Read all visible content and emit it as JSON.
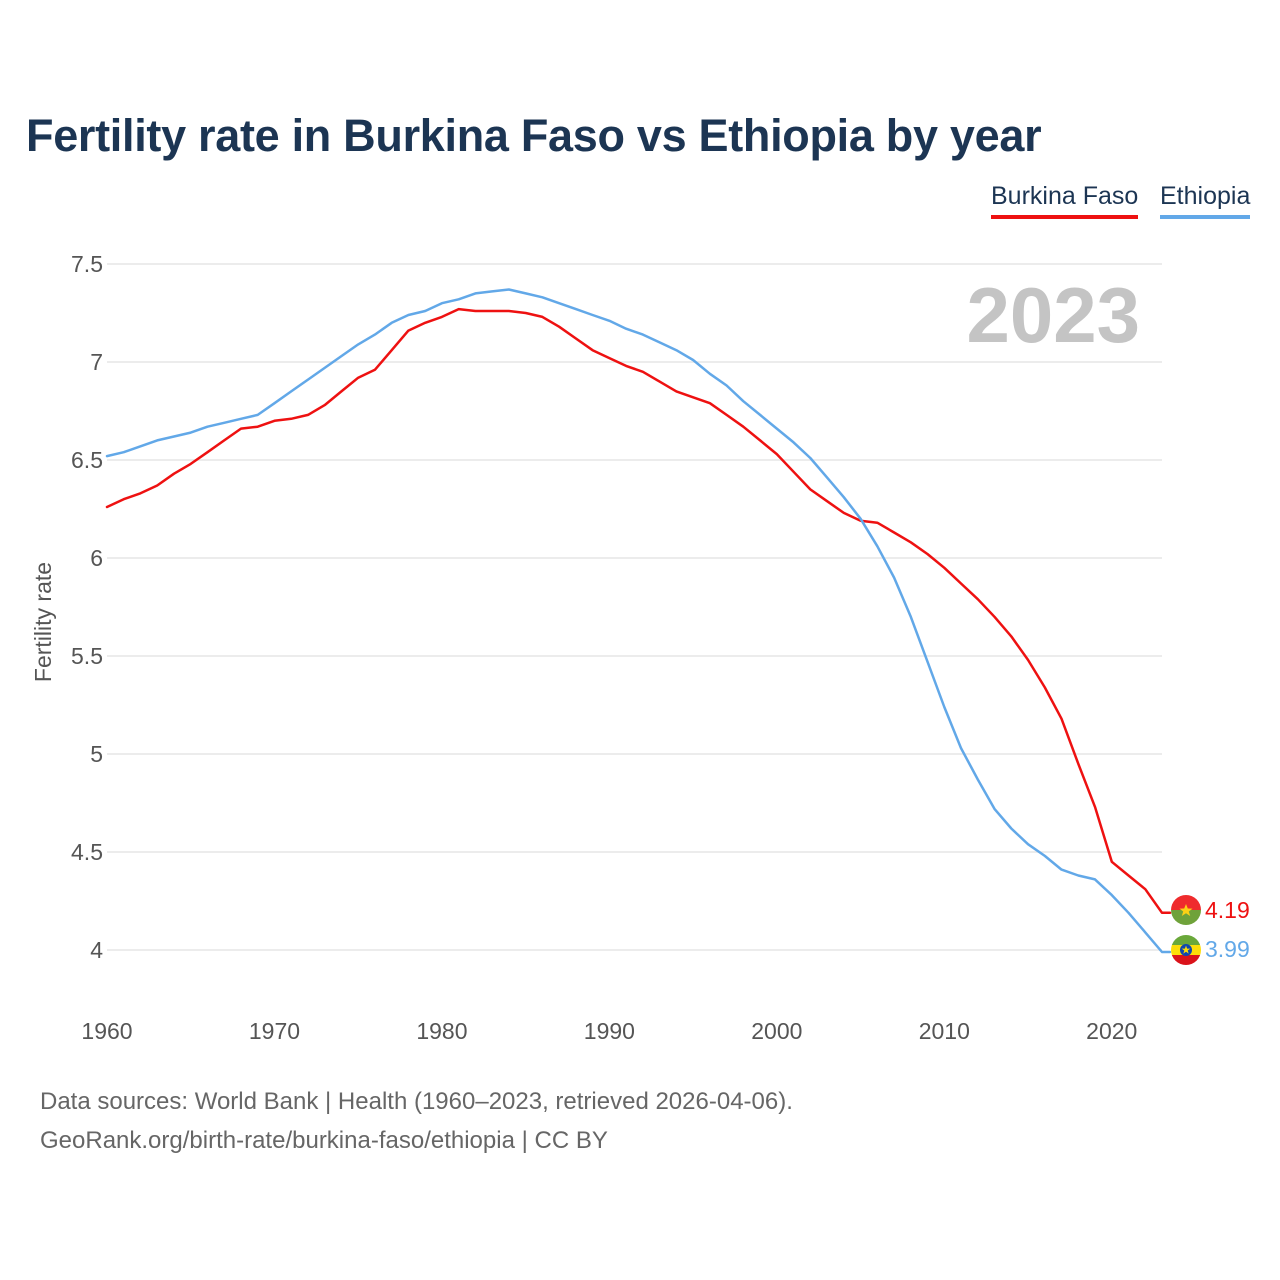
{
  "title": "Fertility rate in Burkina Faso vs Ethiopia by year",
  "legend": {
    "burkina_faso": "Burkina Faso",
    "ethiopia": "Ethiopia"
  },
  "year_watermark": "2023",
  "end_labels": {
    "burkina_faso": "4.19",
    "ethiopia": "3.99"
  },
  "source": {
    "line1": "Data sources: World Bank | Health (1960–2023, retrieved 2026-04-06).",
    "line2": "GeoRank.org/birth-rate/burkina-faso/ethiopia | CC BY"
  },
  "colors": {
    "burkina_faso": "#ee1111",
    "ethiopia": "#62a8e8",
    "title": "#1c3553",
    "grid": "#e6e6e6",
    "axis_text": "#555555",
    "watermark": "#c4c4c4"
  },
  "chart_data": {
    "type": "line",
    "title": "Fertility rate in Burkina Faso vs Ethiopia by year",
    "xlabel": "",
    "ylabel": "Fertility rate",
    "xlim": [
      1960,
      2023
    ],
    "ylim": [
      4,
      7.5
    ],
    "xticks": [
      1960,
      1970,
      1980,
      1990,
      2000,
      2010,
      2020
    ],
    "yticks": [
      4,
      4.5,
      5,
      5.5,
      6,
      6.5,
      7,
      7.5
    ],
    "ytick_labels": [
      "4",
      "4.5",
      "5",
      "5.5",
      "6",
      "6.5",
      "7",
      "7.5"
    ],
    "grid": true,
    "legend_position": "top-right",
    "x": [
      1960,
      1961,
      1962,
      1963,
      1964,
      1965,
      1966,
      1967,
      1968,
      1969,
      1970,
      1971,
      1972,
      1973,
      1974,
      1975,
      1976,
      1977,
      1978,
      1979,
      1980,
      1981,
      1982,
      1983,
      1984,
      1985,
      1986,
      1987,
      1988,
      1989,
      1990,
      1991,
      1992,
      1993,
      1994,
      1995,
      1996,
      1997,
      1998,
      1999,
      2000,
      2001,
      2002,
      2003,
      2004,
      2005,
      2006,
      2007,
      2008,
      2009,
      2010,
      2011,
      2012,
      2013,
      2014,
      2015,
      2016,
      2017,
      2018,
      2019,
      2020,
      2021,
      2022,
      2023
    ],
    "series": [
      {
        "name": "Burkina Faso",
        "color": "#ee1111",
        "values": [
          6.26,
          6.3,
          6.33,
          6.37,
          6.43,
          6.48,
          6.54,
          6.6,
          6.66,
          6.67,
          6.7,
          6.71,
          6.73,
          6.78,
          6.85,
          6.92,
          6.96,
          7.06,
          7.16,
          7.2,
          7.23,
          7.27,
          7.26,
          7.26,
          7.26,
          7.25,
          7.23,
          7.18,
          7.12,
          7.06,
          7.02,
          6.98,
          6.95,
          6.9,
          6.85,
          6.82,
          6.79,
          6.73,
          6.67,
          6.6,
          6.53,
          6.44,
          6.35,
          6.29,
          6.23,
          6.19,
          6.18,
          6.13,
          6.08,
          6.02,
          5.95,
          5.87,
          5.79,
          5.7,
          5.6,
          5.48,
          5.34,
          5.18,
          4.95,
          4.73,
          4.45,
          4.38,
          4.31,
          4.19
        ]
      },
      {
        "name": "Ethiopia",
        "color": "#62a8e8",
        "values": [
          6.52,
          6.54,
          6.57,
          6.6,
          6.62,
          6.64,
          6.67,
          6.69,
          6.71,
          6.73,
          6.79,
          6.85,
          6.91,
          6.97,
          7.03,
          7.09,
          7.14,
          7.2,
          7.24,
          7.26,
          7.3,
          7.32,
          7.35,
          7.36,
          7.37,
          7.35,
          7.33,
          7.3,
          7.27,
          7.24,
          7.21,
          7.17,
          7.14,
          7.1,
          7.06,
          7.01,
          6.94,
          6.88,
          6.8,
          6.73,
          6.66,
          6.59,
          6.51,
          6.41,
          6.31,
          6.2,
          6.06,
          5.9,
          5.7,
          5.47,
          5.24,
          5.03,
          4.87,
          4.72,
          4.62,
          4.54,
          4.48,
          4.41,
          4.38,
          4.36,
          4.28,
          4.19,
          4.09,
          3.99
        ]
      }
    ]
  }
}
